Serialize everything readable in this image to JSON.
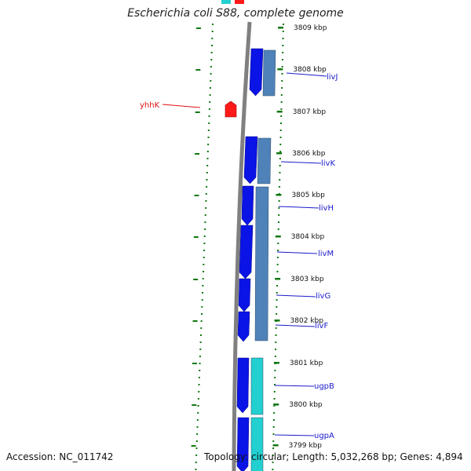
{
  "title": "Escherichia coli S88, complete genome",
  "footer": {
    "accession": "Accession: NC_011742",
    "topology": "Topology: circular; Length: 5,032,268 bp; Genes: 4,894"
  },
  "colors": {
    "gene_fwd": "#0a14e6",
    "gene_rev_blue": "#4f82b8",
    "gene_rev_cyan": "#22d0d0",
    "highlight": "#ff1a1a",
    "label_blue": "#1a1acc",
    "label_red": "#dd1111",
    "tick_green": "#117711",
    "backbone": "#808080"
  },
  "kbp_labels": [
    "3809 kbp",
    "3808 kbp",
    "3807 kbp",
    "3806 kbp",
    "3805 kbp",
    "3804 kbp",
    "3803 kbp",
    "3802 kbp",
    "3801 kbp",
    "3800 kbp",
    "3799 kbp"
  ],
  "gene_labels": [
    {
      "name": "yhhK",
      "color": "red"
    },
    {
      "name": "livJ",
      "color": "blue"
    },
    {
      "name": "livK",
      "color": "blue"
    },
    {
      "name": "livH",
      "color": "blue"
    },
    {
      "name": "livM",
      "color": "blue"
    },
    {
      "name": "livG",
      "color": "blue"
    },
    {
      "name": "livF",
      "color": "blue"
    },
    {
      "name": "ugpB",
      "color": "blue"
    },
    {
      "name": "ugpA",
      "color": "blue"
    }
  ]
}
